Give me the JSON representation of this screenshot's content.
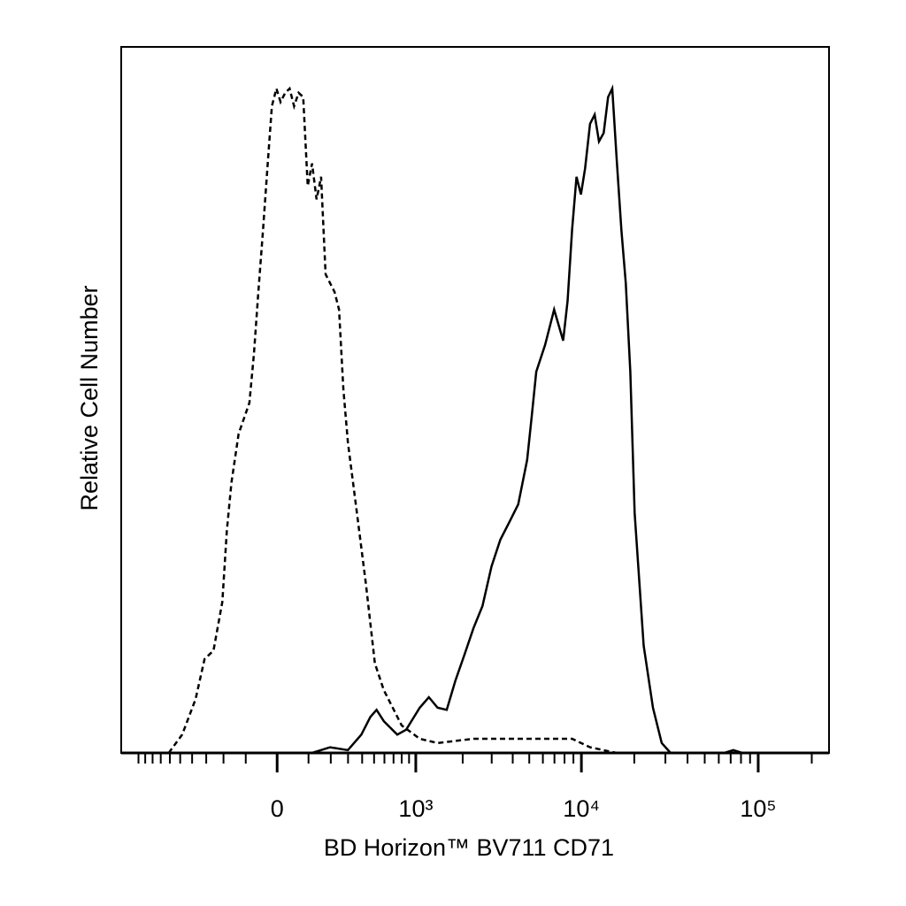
{
  "chart_data": {
    "type": "histogram-overlay",
    "xlabel": "BD Horizon™ BV711 CD71",
    "ylabel": "Relative Cell Number",
    "xscale": "biexponential",
    "xlim": [
      -1300,
      250000
    ],
    "ylim": [
      0,
      100
    ],
    "xticks": [
      0,
      {
        "value": 1000,
        "label": "10³"
      },
      {
        "value": 10000,
        "label": "10⁴"
      },
      {
        "value": 100000,
        "label": "10⁵"
      }
    ],
    "xminorticks": [
      -1000,
      -900,
      -800,
      -700,
      -600,
      -500,
      -400,
      -300,
      -200,
      -100,
      100,
      200,
      300,
      400,
      500,
      600,
      700,
      800,
      900,
      2000,
      3000,
      4000,
      5000,
      6000,
      7000,
      8000,
      9000,
      20000,
      30000,
      40000,
      50000,
      60000,
      70000,
      80000,
      90000,
      200000
    ],
    "series": [
      {
        "color": "#000000",
        "dash": true,
        "x": [
          -612,
          -482,
          -374,
          -311,
          -255,
          -206,
          -183,
          -161,
          -129,
          -86,
          -70,
          -55,
          -40,
          -27,
          -14,
          -2,
          9,
          22,
          35,
          49,
          64,
          80,
          97,
          114,
          133,
          153,
          174,
          220,
          245,
          271,
          299,
          361,
          430,
          507,
          594,
          691,
          800,
          1062,
          1390,
          2330,
          4860,
          8840,
          11200,
          15900
        ],
        "values": [
          0,
          2.6,
          7.6,
          13.3,
          14.5,
          21.4,
          31.5,
          38.3,
          45.2,
          49.6,
          56.5,
          65.3,
          74.1,
          82.8,
          91.6,
          94.1,
          92.2,
          93.5,
          94.1,
          91.6,
          93.5,
          92.9,
          80.3,
          83.5,
          78.4,
          81.6,
          67.8,
          65.3,
          62.8,
          51.5,
          44.0,
          34.0,
          23.9,
          12.7,
          8.9,
          6.4,
          3.9,
          2.0,
          1.4,
          2.0,
          2.0,
          2.0,
          0.8,
          0
        ]
      },
      {
        "color": "#000000",
        "dash": false,
        "x": [
          114,
          196,
          299,
          394,
          467,
          523,
          594,
          744,
          860,
          1062,
          1220,
          1390,
          1590,
          1800,
          2050,
          2330,
          2640,
          2990,
          3380,
          3820,
          4310,
          4860,
          5170,
          5490,
          6180,
          6970,
          7860,
          8330,
          8840,
          9380,
          9940,
          10500,
          11200,
          11900,
          12600,
          13400,
          14200,
          15000,
          15900,
          16900,
          17900,
          19000,
          20100,
          22600,
          25500,
          28600,
          32100,
          64500,
          72400,
          81400
        ],
        "values": [
          0,
          0.8,
          0.4,
          2.6,
          5.1,
          6.1,
          4.5,
          2.6,
          3.3,
          6.4,
          7.9,
          6.4,
          6.1,
          10.2,
          13.9,
          17.7,
          20.8,
          26.4,
          30.2,
          32.7,
          35.2,
          41.5,
          47.7,
          54.0,
          57.8,
          62.8,
          58.4,
          64.0,
          74.1,
          81.6,
          79.1,
          82.8,
          89.1,
          90.4,
          86.6,
          87.8,
          92.9,
          94.1,
          84.1,
          74.1,
          66.5,
          54.0,
          34.0,
          15.2,
          6.4,
          1.4,
          0,
          0,
          0.4,
          0
        ]
      }
    ]
  }
}
